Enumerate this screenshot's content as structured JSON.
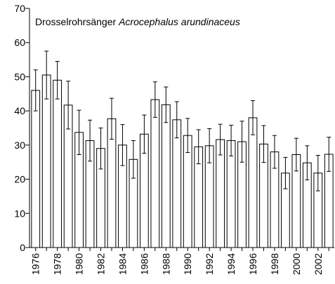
{
  "chart_data": {
    "type": "bar",
    "title": "Drosselrohrsänger",
    "subtitle": "Acrocephalus arundinaceus",
    "categories": [
      "1976",
      null,
      "1978",
      null,
      "1980",
      null,
      "1982",
      null,
      "1984",
      null,
      "1986",
      null,
      "1988",
      null,
      "1990",
      null,
      "1992",
      null,
      "1994",
      null,
      "1996",
      null,
      "1998",
      null,
      "2000",
      null,
      "2002",
      null
    ],
    "values": [
      46,
      50.5,
      49,
      41.7,
      33.7,
      31.3,
      29,
      37.7,
      30,
      25.8,
      33.2,
      43.3,
      41.8,
      37.4,
      32.8,
      29.5,
      29.8,
      31.6,
      31.3,
      31,
      38,
      30.3,
      28,
      21.8,
      27.2,
      24.8,
      21.8,
      27.3
    ],
    "errors": [
      6,
      7,
      5.5,
      7,
      6.5,
      6,
      6,
      6,
      6,
      5.5,
      5.6,
      5.2,
      5.2,
      5.3,
      5,
      5,
      5,
      4.5,
      4.5,
      6,
      5,
      5.4,
      4.8,
      4.6,
      4.8,
      5,
      5.2,
      5
    ],
    "color": "#000000",
    "ylim": [
      0,
      70
    ],
    "yticks": [
      0,
      10,
      20,
      30,
      40,
      50,
      60,
      70
    ],
    "grid": false
  }
}
